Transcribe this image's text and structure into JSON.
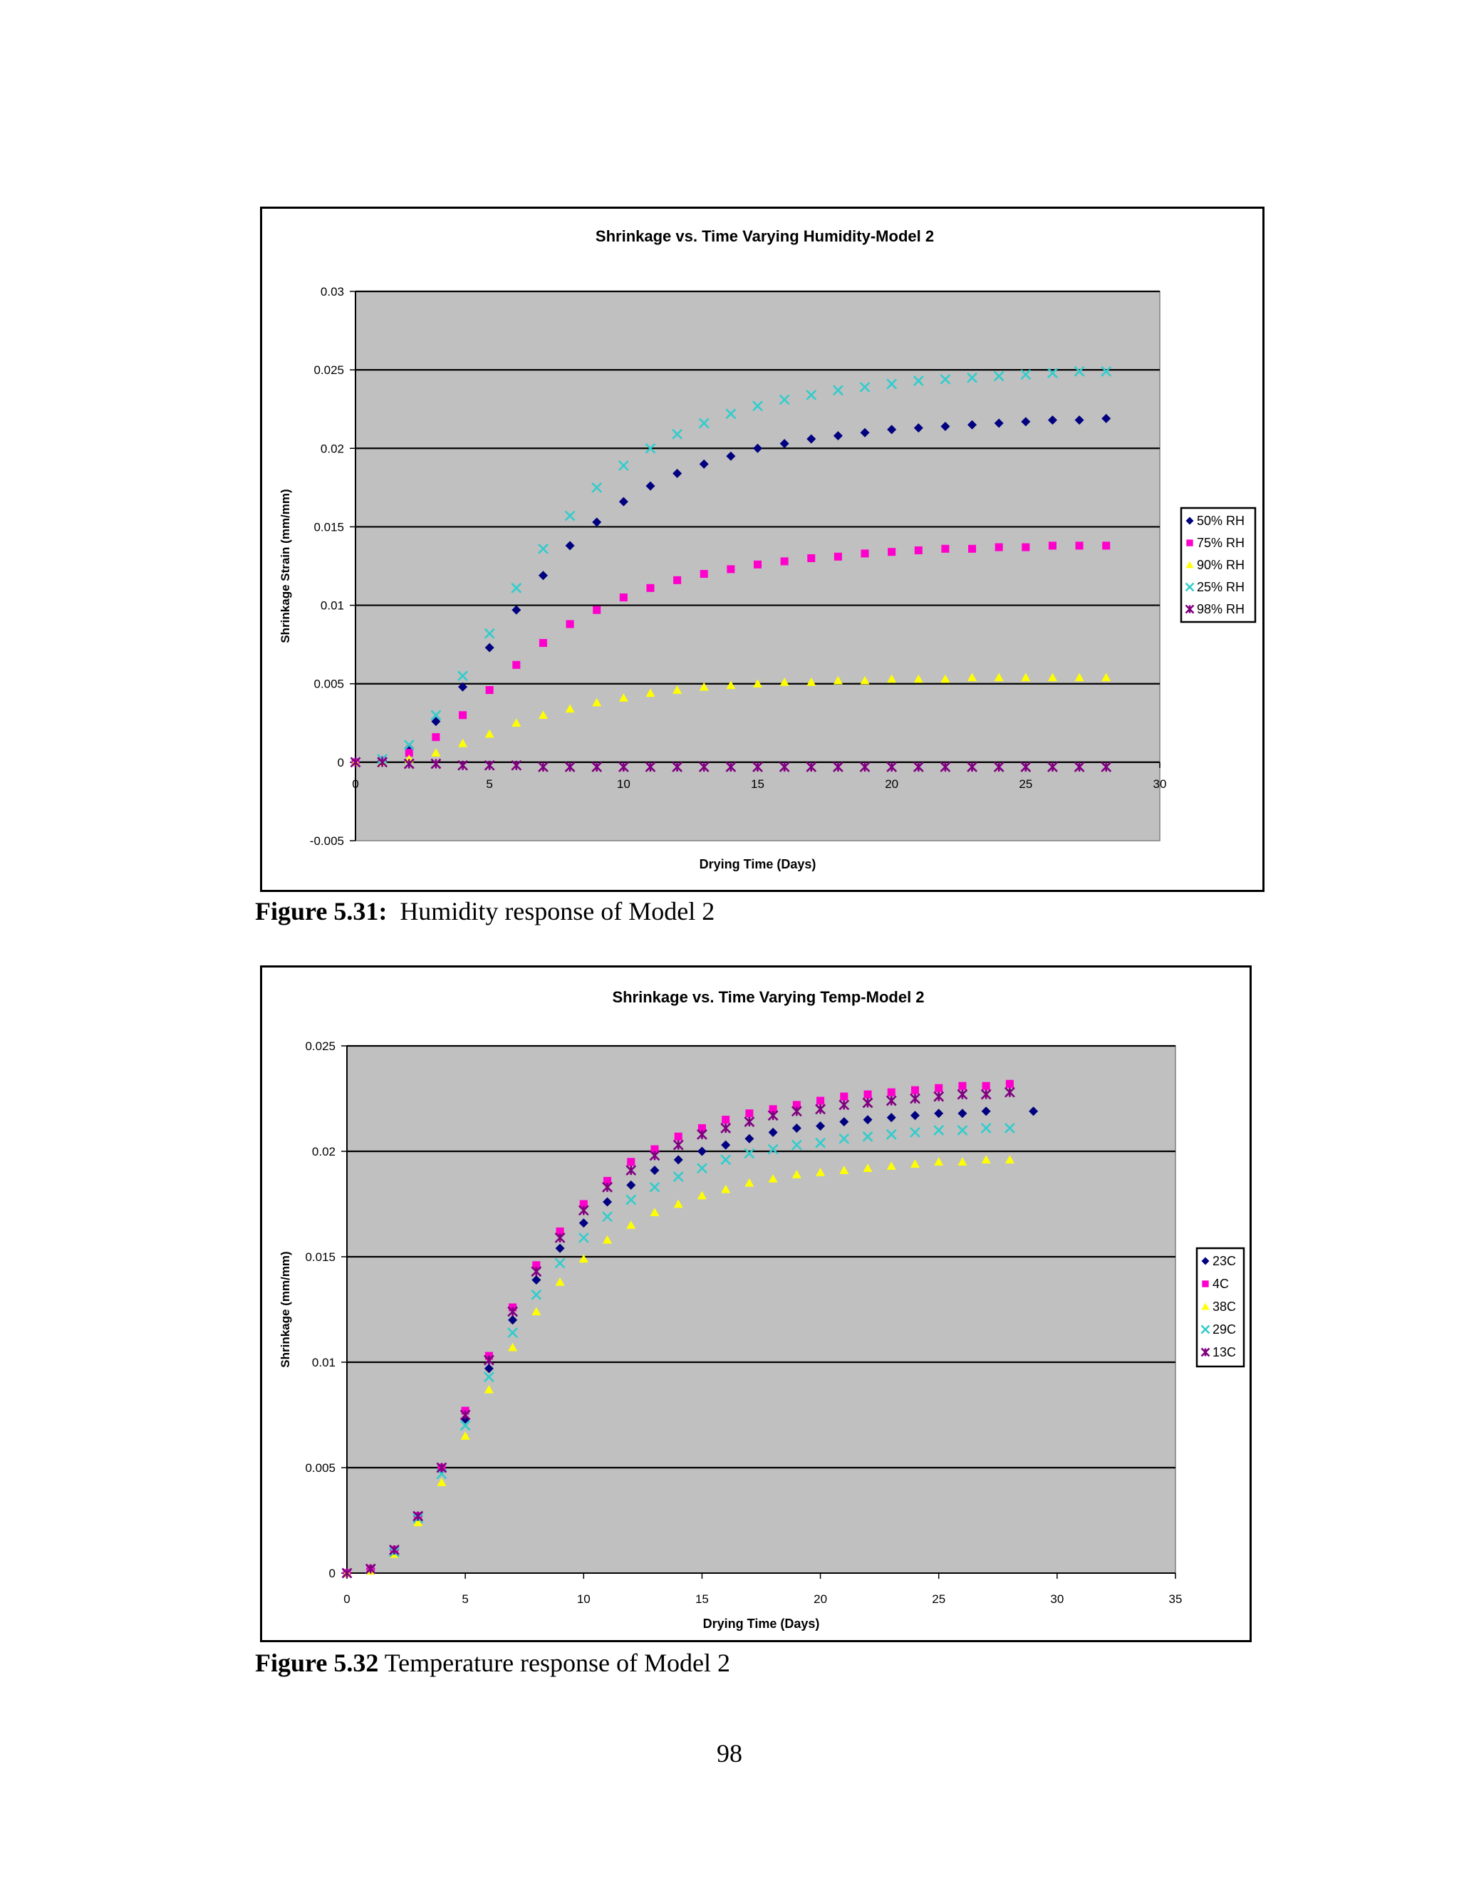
{
  "figures": [
    {
      "caption_label": "Figure 5.31:",
      "caption_text": "Humidity response of Model 2"
    },
    {
      "caption_label": "Figure 5.32",
      "caption_text": "Temperature response of Model 2"
    }
  ],
  "page_number": "98",
  "colors": {
    "plot_background": "#C0C0C0",
    "navy": "#000080",
    "magenta": "#FF00CC",
    "yellow": "#FFFF00",
    "cyan": "#33CCCC",
    "purple": "#800080"
  },
  "chart_data": [
    {
      "type": "scatter",
      "title": "Shrinkage vs. Time Varying Humidity-Model 2",
      "xlabel": "Drying Time (Days)",
      "ylabel": "Shrinkage Strain (mm/mm)",
      "xlim": [
        0,
        30
      ],
      "ylim": [
        -0.005,
        0.03
      ],
      "xticks": [
        "0",
        "5",
        "10",
        "15",
        "20",
        "25",
        "30"
      ],
      "yticks": [
        "-0.005",
        "0",
        "0.005",
        "0.01",
        "0.015",
        "0.02",
        "0.025",
        "0.03"
      ],
      "grid": "horizontal",
      "legend": "right",
      "x": [
        0,
        1,
        2,
        3,
        4,
        5,
        6,
        7,
        8,
        9,
        10,
        11,
        12,
        13,
        14,
        15,
        16,
        17,
        18,
        19,
        20,
        21,
        22,
        23,
        24,
        25,
        26,
        27,
        28
      ],
      "series": [
        {
          "name": "50% RH",
          "marker": "diamond",
          "color": "#000080",
          "values": [
            0,
            0.0001,
            0.0009,
            0.0026,
            0.0048,
            0.0073,
            0.0097,
            0.0119,
            0.0138,
            0.0153,
            0.0166,
            0.0176,
            0.0184,
            0.019,
            0.0195,
            0.02,
            0.0203,
            0.0206,
            0.0208,
            0.021,
            0.0212,
            0.0213,
            0.0214,
            0.0215,
            0.0216,
            0.0217,
            0.0218,
            0.0218,
            0.0219
          ]
        },
        {
          "name": "75%      RH",
          "marker": "square",
          "color": "#FF00CC",
          "values": [
            0,
            0.0001,
            0.0006,
            0.0016,
            0.003,
            0.0046,
            0.0062,
            0.0076,
            0.0088,
            0.0097,
            0.0105,
            0.0111,
            0.0116,
            0.012,
            0.0123,
            0.0126,
            0.0128,
            0.013,
            0.0131,
            0.0133,
            0.0134,
            0.0135,
            0.0136,
            0.0136,
            0.0137,
            0.0137,
            0.0138,
            0.0138,
            0.0138
          ]
        },
        {
          "name": "90%      RH",
          "marker": "triangle",
          "color": "#FFFF00",
          "values": [
            0,
            0.0,
            0.0002,
            0.0006,
            0.0012,
            0.0018,
            0.0025,
            0.003,
            0.0034,
            0.0038,
            0.0041,
            0.0044,
            0.0046,
            0.0048,
            0.0049,
            0.005,
            0.0051,
            0.0051,
            0.0052,
            0.0052,
            0.0053,
            0.0053,
            0.0053,
            0.0054,
            0.0054,
            0.0054,
            0.0054,
            0.0054,
            0.0054
          ]
        },
        {
          "name": "25% RH",
          "marker": "x",
          "color": "#33CCCC",
          "values": [
            0,
            0.0002,
            0.0011,
            0.003,
            0.0055,
            0.0082,
            0.0111,
            0.0136,
            0.0157,
            0.0175,
            0.0189,
            0.02,
            0.0209,
            0.0216,
            0.0222,
            0.0227,
            0.0231,
            0.0234,
            0.0237,
            0.0239,
            0.0241,
            0.0243,
            0.0244,
            0.0245,
            0.0246,
            0.0247,
            0.0248,
            0.0249,
            0.0249
          ]
        },
        {
          "name": "98% RH",
          "marker": "star",
          "color": "#800080",
          "values": [
            0,
            0,
            -0.0001,
            -0.0001,
            -0.0002,
            -0.0002,
            -0.0002,
            -0.0003,
            -0.0003,
            -0.0003,
            -0.0003,
            -0.0003,
            -0.0003,
            -0.0003,
            -0.0003,
            -0.0003,
            -0.0003,
            -0.0003,
            -0.0003,
            -0.0003,
            -0.0003,
            -0.0003,
            -0.0003,
            -0.0003,
            -0.0003,
            -0.0003,
            -0.0003,
            -0.0003,
            -0.0003
          ]
        }
      ]
    },
    {
      "type": "scatter",
      "title": "Shrinkage vs. Time Varying Temp-Model 2",
      "xlabel": "Drying Time (Days)",
      "ylabel": "Shrinkage (mm/mm)",
      "xlim": [
        0,
        35
      ],
      "ylim": [
        0,
        0.025
      ],
      "xticks": [
        "0",
        "5",
        "10",
        "15",
        "20",
        "25",
        "30",
        "35"
      ],
      "yticks": [
        "0",
        "0.005",
        "0.01",
        "0.015",
        "0.02",
        "0.025"
      ],
      "grid": "horizontal",
      "legend": "right",
      "series": [
        {
          "name": "23C",
          "marker": "diamond",
          "color": "#000080",
          "x": [
            0,
            1,
            2,
            3,
            4,
            5,
            6,
            7,
            8,
            9,
            10,
            11,
            12,
            13,
            14,
            15,
            16,
            17,
            18,
            19,
            20,
            21,
            22,
            23,
            24,
            25,
            26,
            27,
            29
          ],
          "values": [
            0,
            0.0002,
            0.0011,
            0.0027,
            0.0049,
            0.0073,
            0.0097,
            0.012,
            0.0139,
            0.0154,
            0.0166,
            0.0176,
            0.0184,
            0.0191,
            0.0196,
            0.02,
            0.0203,
            0.0206,
            0.0209,
            0.0211,
            0.0212,
            0.0214,
            0.0215,
            0.0216,
            0.0217,
            0.0218,
            0.0218,
            0.0219,
            0.0219
          ]
        },
        {
          "name": "4C",
          "marker": "square",
          "color": "#FF00CC",
          "x": [
            0,
            1,
            2,
            3,
            4,
            5,
            6,
            7,
            8,
            9,
            10,
            11,
            12,
            13,
            14,
            15,
            16,
            17,
            18,
            19,
            20,
            21,
            22,
            23,
            24,
            25,
            26,
            27,
            28
          ],
          "values": [
            0,
            0.0002,
            0.0011,
            0.0027,
            0.005,
            0.0077,
            0.0103,
            0.0126,
            0.0146,
            0.0162,
            0.0175,
            0.0186,
            0.0195,
            0.0201,
            0.0207,
            0.0211,
            0.0215,
            0.0218,
            0.022,
            0.0222,
            0.0224,
            0.0226,
            0.0227,
            0.0228,
            0.0229,
            0.023,
            0.0231,
            0.0231,
            0.0232
          ]
        },
        {
          "name": "38C",
          "marker": "triangle",
          "color": "#FFFF00",
          "x": [
            0,
            1,
            2,
            3,
            4,
            5,
            6,
            7,
            8,
            9,
            10,
            11,
            12,
            13,
            14,
            15,
            16,
            17,
            18,
            19,
            20,
            21,
            22,
            23,
            24,
            25,
            26,
            27,
            28
          ],
          "values": [
            0,
            0.0001,
            0.0009,
            0.0024,
            0.0043,
            0.0065,
            0.0087,
            0.0107,
            0.0124,
            0.0138,
            0.0149,
            0.0158,
            0.0165,
            0.0171,
            0.0175,
            0.0179,
            0.0182,
            0.0185,
            0.0187,
            0.0189,
            0.019,
            0.0191,
            0.0192,
            0.0193,
            0.0194,
            0.0195,
            0.0195,
            0.0196,
            0.0196
          ]
        },
        {
          "name": "29C",
          "marker": "x",
          "color": "#33CCCC",
          "x": [
            0,
            1,
            2,
            3,
            4,
            5,
            6,
            7,
            8,
            9,
            10,
            11,
            12,
            13,
            14,
            15,
            16,
            17,
            18,
            19,
            20,
            21,
            22,
            23,
            24,
            25,
            26,
            27,
            28
          ],
          "values": [
            0,
            0.0002,
            0.001,
            0.0026,
            0.0047,
            0.007,
            0.0093,
            0.0114,
            0.0132,
            0.0147,
            0.0159,
            0.0169,
            0.0177,
            0.0183,
            0.0188,
            0.0192,
            0.0196,
            0.0199,
            0.0201,
            0.0203,
            0.0204,
            0.0206,
            0.0207,
            0.0208,
            0.0209,
            0.021,
            0.021,
            0.0211,
            0.0211
          ]
        },
        {
          "name": "13C",
          "marker": "star",
          "color": "#800080",
          "x": [
            0,
            1,
            2,
            3,
            4,
            5,
            6,
            7,
            8,
            9,
            10,
            11,
            12,
            13,
            14,
            15,
            16,
            17,
            18,
            19,
            20,
            21,
            22,
            23,
            24,
            25,
            26,
            27,
            28
          ],
          "values": [
            0,
            0.0002,
            0.0011,
            0.0027,
            0.005,
            0.0075,
            0.0101,
            0.0124,
            0.0143,
            0.0159,
            0.0172,
            0.0183,
            0.0191,
            0.0198,
            0.0203,
            0.0208,
            0.0211,
            0.0214,
            0.0217,
            0.0219,
            0.022,
            0.0222,
            0.0223,
            0.0224,
            0.0225,
            0.0226,
            0.0227,
            0.0227,
            0.0228
          ]
        }
      ]
    }
  ]
}
